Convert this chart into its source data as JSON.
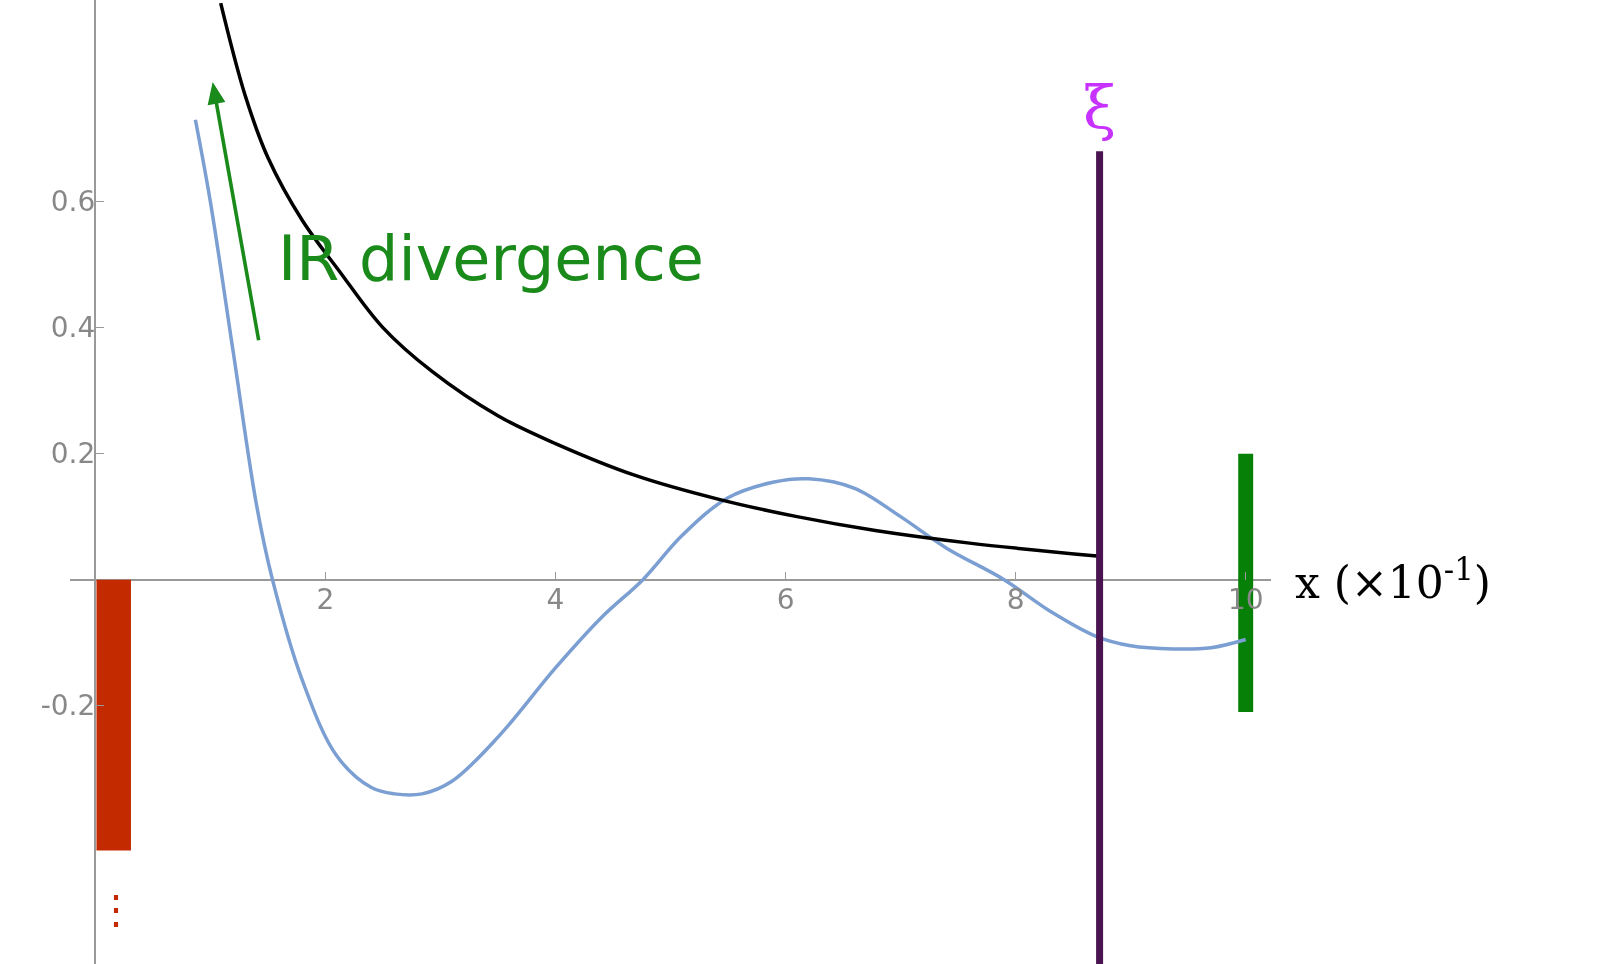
{
  "chart_data": {
    "type": "line",
    "xlabel": "x (×10$^{-1}$)",
    "xlim": [
      -0.22,
      10.22
    ],
    "ylim": [
      -0.61,
      0.92
    ],
    "xticks": [
      2,
      4,
      6,
      8,
      10
    ],
    "yticks": [
      -0.2,
      0.2,
      0.4,
      0.6
    ],
    "series": [
      {
        "color": "#7b9fd2",
        "x": [
          0.87,
          1.0,
          1.2,
          1.4,
          1.54,
          1.8,
          2.1,
          2.4,
          2.6,
          2.84,
          3.1,
          3.5,
          4.0,
          4.4,
          4.76,
          5.1,
          5.5,
          5.9,
          6.2,
          6.6,
          7.0,
          7.4,
          7.9,
          8.3,
          8.7,
          9.0,
          9.37,
          9.7,
          10.0
        ],
        "values": [
          0.73,
          0.6,
          0.36,
          0.12,
          0.0,
          -0.16,
          -0.28,
          -0.33,
          -0.34,
          -0.34,
          -0.32,
          -0.25,
          -0.14,
          -0.06,
          0.0,
          0.07,
          0.13,
          0.155,
          0.16,
          0.145,
          0.1,
          0.05,
          0.0,
          -0.05,
          -0.09,
          -0.105,
          -0.11,
          -0.108,
          -0.095
        ]
      },
      {
        "color": "#000000",
        "x": [
          1.09,
          1.3,
          1.5,
          1.8,
          2.12,
          2.5,
          2.93,
          3.5,
          4.0,
          4.7,
          5.43,
          6.1,
          6.78,
          7.6,
          8.73
        ],
        "values": [
          0.915,
          0.77,
          0.67,
          0.57,
          0.49,
          0.4,
          0.33,
          0.26,
          0.216,
          0.165,
          0.127,
          0.1,
          0.078,
          0.058,
          0.037
        ]
      },
      {
        "type": "bar",
        "color": "#c42a00",
        "x": [
          0.16
        ],
        "values": [
          -0.43
        ]
      },
      {
        "type": "bar",
        "color": "#078007",
        "x": [
          10.0
        ],
        "base": [
          -0.21
        ],
        "values": [
          0.41
        ]
      }
    ],
    "ref_lines": [
      {
        "axis": "x",
        "value": 8.73,
        "label": "ξ",
        "color": "#4a1450"
      }
    ],
    "annotations": [
      "IR divergence",
      "⋮"
    ]
  }
}
